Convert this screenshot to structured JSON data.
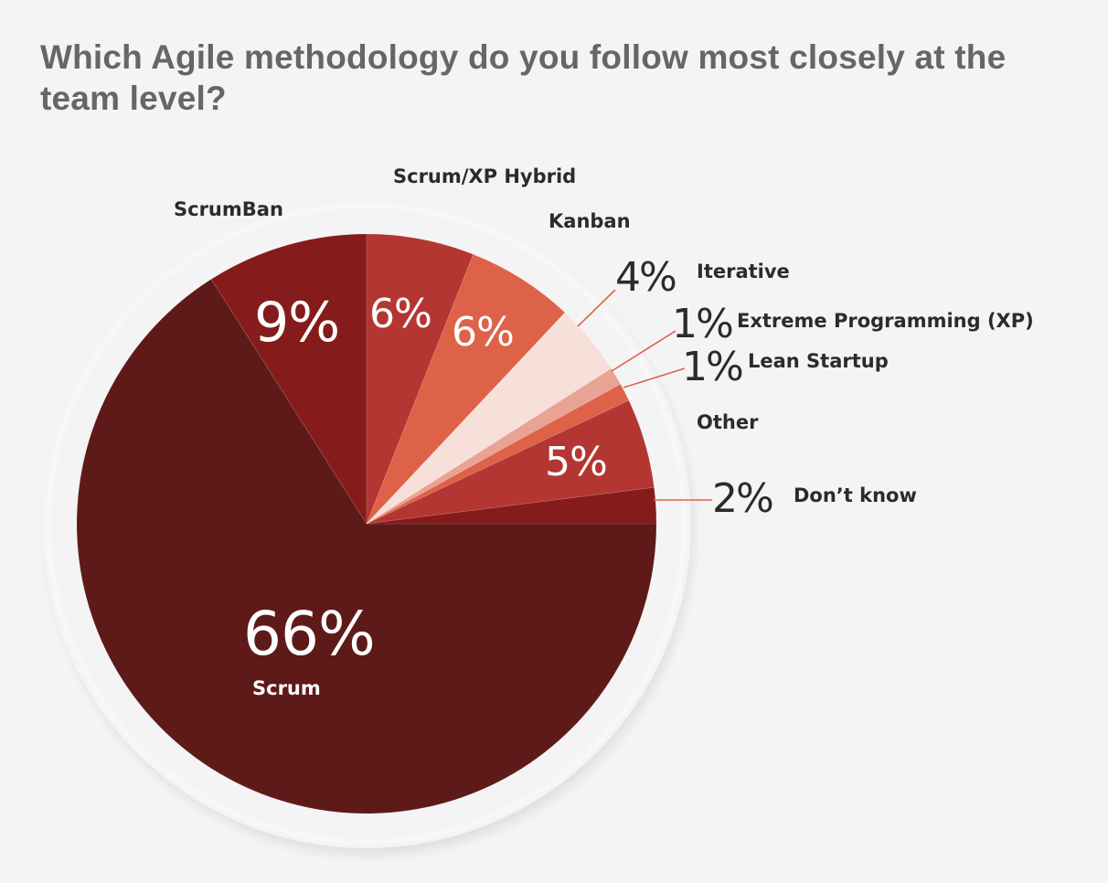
{
  "title": "Which Agile methodology do you follow most closely at the team level?",
  "colors": {
    "background": "#f4f4f4",
    "title": "#666666",
    "label": "#2b2b2b",
    "leader_line": "#de6248",
    "ring": "#f4f4f4"
  },
  "chart_data": {
    "type": "pie",
    "title": "Which Agile methodology do you follow most closely at the team level?",
    "start_angle_deg": 90,
    "direction": "clockwise",
    "unit": "%",
    "categories": [
      "Scrum",
      "ScrumBan",
      "Scrum/XP Hybrid",
      "Kanban",
      "Iterative",
      "Extreme Programming (XP)",
      "Lean Startup",
      "Other",
      "Don’t know"
    ],
    "values": [
      66,
      9,
      6,
      6,
      4,
      1,
      1,
      5,
      2
    ],
    "slice_colors": [
      "#5e1a18",
      "#851b1a",
      "#b43632",
      "#de6248",
      "#f8e0da",
      "#e9a394",
      "#de6248",
      "#b43632",
      "#851b1a"
    ],
    "legend": "none (direct labels)"
  },
  "labels": {
    "scrum": {
      "name": "Scrum",
      "pct": "66%"
    },
    "scrumban": {
      "name": "ScrumBan",
      "pct": "9%"
    },
    "hybrid": {
      "name": "Scrum/XP Hybrid",
      "pct": "6%"
    },
    "kanban": {
      "name": "Kanban",
      "pct": "6%"
    },
    "iterative": {
      "name": "Iterative",
      "pct": "4%"
    },
    "xp": {
      "name": "Extreme Programming (XP)",
      "pct": "1%"
    },
    "lean": {
      "name": "Lean Startup",
      "pct": "1%"
    },
    "other": {
      "name": "Other",
      "pct": "5%"
    },
    "dontknow": {
      "name": "Don’t know",
      "pct": "2%"
    }
  }
}
